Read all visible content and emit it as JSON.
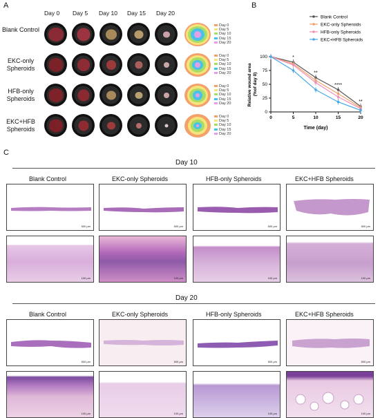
{
  "panel_a": {
    "letter": "A",
    "columns": [
      "Day 0",
      "Day 5",
      "Day 10",
      "Day 15",
      "Day 20"
    ],
    "rows": [
      {
        "label": "Blank Control"
      },
      {
        "label": "EKC-only Spheroids"
      },
      {
        "label": "HFB-only Spheroids"
      },
      {
        "label": "EKC+HFB Spheroids"
      }
    ],
    "legend": [
      "Day 0",
      "Day 5",
      "Day 10",
      "Day 15",
      "Day 20"
    ],
    "legend_colors": [
      "#f4a06b",
      "#f5e47a",
      "#a6dc6a",
      "#48c2e8",
      "#e4a0e6"
    ]
  },
  "panel_b": {
    "letter": "B",
    "chart_data": {
      "type": "line",
      "xlabel": "Time (day)",
      "ylabel": "Relative wound area (%of day 0)",
      "x": [
        0,
        5,
        10,
        15,
        20
      ],
      "xlim": [
        0,
        20
      ],
      "ylim": [
        0,
        100
      ],
      "yticks": [
        0,
        25,
        50,
        75,
        100
      ],
      "series": [
        {
          "name": "Blank Control",
          "color": "#555555",
          "values": [
            100,
            90,
            62,
            40,
            10
          ]
        },
        {
          "name": "EKC-only Spheroids",
          "color": "#f3a06b",
          "values": [
            100,
            87,
            57,
            33,
            8
          ]
        },
        {
          "name": "HFB-only Spheroids",
          "color": "#f08fb4",
          "values": [
            100,
            85,
            53,
            27,
            6
          ]
        },
        {
          "name": "EKC+HFB Spheroids",
          "color": "#4aa8e8",
          "values": [
            100,
            75,
            40,
            18,
            3
          ]
        }
      ],
      "annotations": [
        {
          "x": 5,
          "text": "*"
        },
        {
          "x": 10,
          "text": "**"
        },
        {
          "x": 15,
          "text": "****"
        },
        {
          "x": 20,
          "text": "**"
        }
      ]
    }
  },
  "panel_c": {
    "letter": "C",
    "groups": [
      "Blank Control",
      "EKC-only Spheroids",
      "HFB-only Spheroids",
      "EKC+HFB Spheroids"
    ],
    "day10": {
      "title": "Day 10"
    },
    "day20": {
      "title": "Day 20"
    },
    "scale_low": "500 μm",
    "scale_high": "100 μm"
  }
}
